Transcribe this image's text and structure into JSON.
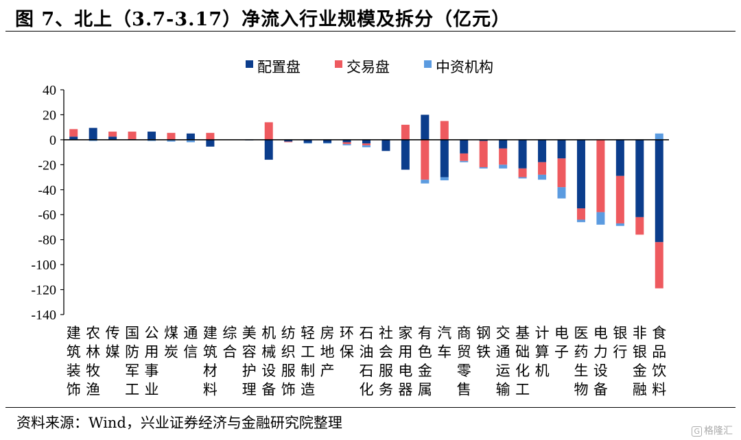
{
  "title": "图 7、北上（3.7-3.17）净流入行业规模及拆分（亿元）",
  "source": "资料来源：Wind，兴业证券经济与金融研究院整理",
  "watermark": "格隆汇",
  "watermark_icon": "G",
  "colors": {
    "配置盘": "#0b3d8c",
    "交易盘": "#ee5a5f",
    "中资机构": "#5b9be0"
  },
  "chart_data": {
    "type": "bar",
    "stacked": true,
    "ylim": [
      -140,
      40
    ],
    "yticks": [
      40,
      20,
      0,
      -20,
      -40,
      -60,
      -80,
      -100,
      -120,
      -140
    ],
    "legend_position": "top-center",
    "legend": [
      "配置盘",
      "交易盘",
      "中资机构"
    ],
    "categories": [
      "建筑装饰",
      "农林牧渔",
      "传媒",
      "国防军工",
      "公用事业",
      "煤炭",
      "通信",
      "建筑材料",
      "综合",
      "美容护理",
      "机械设备",
      "纺织服饰",
      "轻工制造",
      "房地产",
      "环保",
      "石油石化",
      "社会服务",
      "家用电器",
      "有色金属",
      "汽车",
      "商贸零售",
      "钢铁",
      "交通运输",
      "基础化工",
      "计算机",
      "电子",
      "医药生物",
      "电力设备",
      "银行",
      "非银金融",
      "食品饮料"
    ],
    "series": [
      {
        "name": "配置盘",
        "values": [
          2.5,
          9.5,
          2.5,
          0.5,
          6.5,
          -0.5,
          5,
          -5.5,
          0,
          -0.5,
          -16,
          -1.5,
          -2.5,
          -2.5,
          -2,
          -3,
          -9,
          -24,
          20,
          -30,
          -11,
          -1,
          -7,
          -23,
          -18,
          -15,
          -55,
          0,
          -29,
          -62,
          -82
        ]
      },
      {
        "name": "交易盘",
        "values": [
          6,
          0,
          4,
          6,
          0,
          5.5,
          0,
          5.5,
          0,
          0,
          14,
          -0.5,
          0,
          0,
          -1.5,
          -1.5,
          0,
          12,
          -32,
          15,
          -6,
          -21,
          -13,
          -7,
          -10,
          -23,
          -9,
          -58,
          -38,
          -14,
          -37
        ]
      },
      {
        "name": "中资机构",
        "values": [
          0,
          -1,
          0,
          0,
          -1,
          -1,
          -2,
          0,
          0,
          0,
          0,
          0,
          -0.5,
          -0.5,
          -1,
          -1.5,
          0,
          0,
          -3,
          -2.5,
          -1,
          -1,
          -3,
          -1,
          -4,
          -9,
          -2,
          -10,
          -2,
          0,
          5
        ]
      }
    ]
  }
}
